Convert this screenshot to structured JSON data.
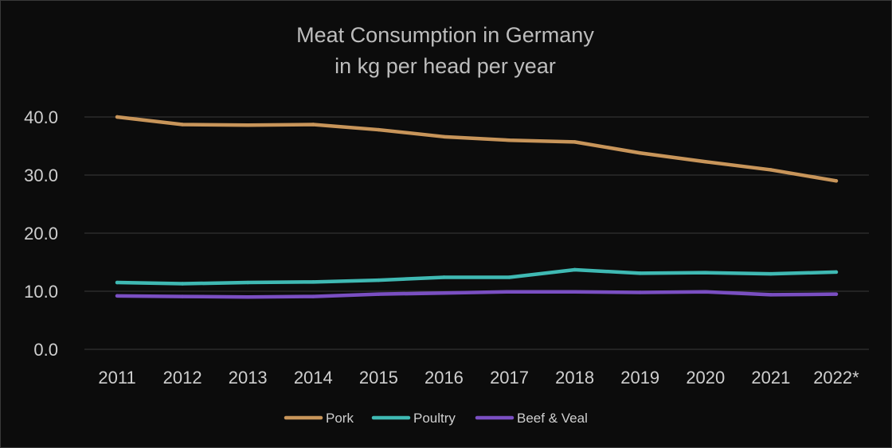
{
  "chart_data": {
    "type": "line",
    "title": "Meat Consumption in Germany",
    "subtitle": "in kg per head per year",
    "xlabel": "",
    "ylabel": "",
    "categories": [
      "2011",
      "2012",
      "2013",
      "2014",
      "2015",
      "2016",
      "2017",
      "2018",
      "2019",
      "2020",
      "2021",
      "2022*"
    ],
    "ylim": [
      0,
      40
    ],
    "yticks": [
      0,
      10,
      20,
      30,
      40
    ],
    "ytick_labels": [
      "0.0",
      "10.0",
      "20.0",
      "30.0",
      "40.0"
    ],
    "grid": true,
    "legend_position": "bottom-center",
    "series": [
      {
        "name": "Pork",
        "color": "#c8955a",
        "values": [
          40.0,
          38.7,
          38.6,
          38.7,
          37.8,
          36.6,
          36.0,
          35.7,
          33.8,
          32.3,
          30.9,
          29.0
        ]
      },
      {
        "name": "Poultry",
        "color": "#3fb9b3",
        "values": [
          11.5,
          11.3,
          11.5,
          11.6,
          11.9,
          12.4,
          12.4,
          13.7,
          13.1,
          13.2,
          13.0,
          13.3
        ]
      },
      {
        "name": "Beef & Veal",
        "color": "#7a4fc2",
        "values": [
          9.2,
          9.1,
          9.0,
          9.1,
          9.5,
          9.7,
          9.9,
          9.9,
          9.8,
          9.9,
          9.4,
          9.5
        ]
      }
    ]
  }
}
